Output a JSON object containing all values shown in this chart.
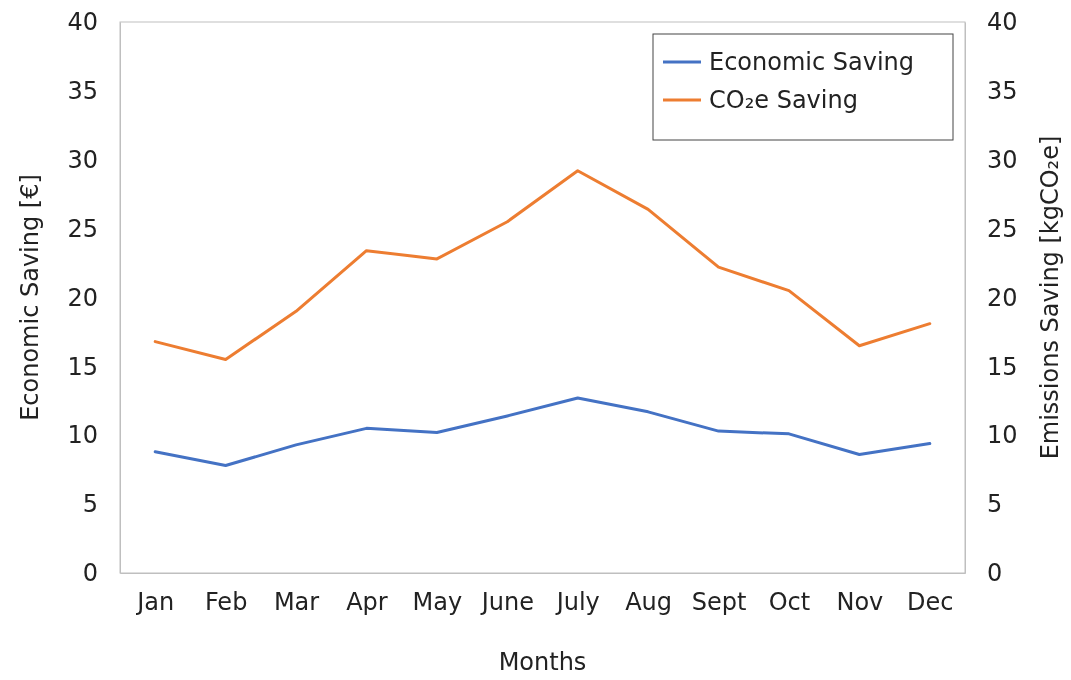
{
  "chart_data": {
    "type": "line",
    "xlabel": "Months",
    "ylabel": "Economic Saving [€]",
    "y2label": "Emissions Saving [kgCO₂e]",
    "categories": [
      "Jan",
      "Feb",
      "Mar",
      "Apr",
      "May",
      "June",
      "July",
      "Aug",
      "Sept",
      "Oct",
      "Nov",
      "Dec"
    ],
    "series": [
      {
        "name": "Economic Saving",
        "color": "#4472c4",
        "values": [
          8.8,
          7.8,
          9.3,
          10.5,
          10.2,
          11.4,
          12.7,
          11.7,
          10.3,
          10.1,
          8.6,
          9.4
        ]
      },
      {
        "name": "CO₂e Saving",
        "color": "#ed7d31",
        "axis": "y2",
        "values": [
          16.8,
          15.5,
          19.0,
          23.4,
          22.8,
          25.5,
          29.2,
          26.4,
          22.2,
          20.5,
          16.5,
          18.1
        ]
      }
    ],
    "ylim": [
      0,
      40
    ],
    "yticks": [
      0,
      5,
      10,
      15,
      20,
      25,
      30,
      35,
      40
    ],
    "y2lim": [
      0,
      40
    ],
    "y2ticks": [
      0,
      5,
      10,
      15,
      20,
      25,
      30,
      35,
      40
    ],
    "grid": false,
    "legend": "top right",
    "marker": "none",
    "line_style": "solid"
  }
}
